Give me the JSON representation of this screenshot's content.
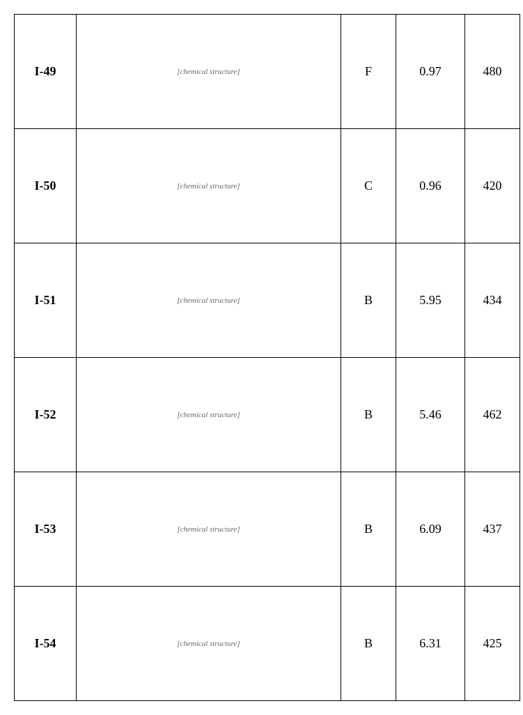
{
  "table": {
    "columns": {
      "c1_width": 80,
      "c2_width": 371,
      "c3_width": 70,
      "c4_width": 90,
      "c5_width": 70,
      "border_color": "#000000",
      "font_family": "Times New Roman",
      "cell_font_size": 18,
      "id_font_weight": "bold"
    },
    "rows": [
      {
        "id": "I-49",
        "structure_desc": "[chemical structure]",
        "c3": "F",
        "c4": "0.97",
        "c5": "480"
      },
      {
        "id": "I-50",
        "structure_desc": "[chemical structure]",
        "c3": "C",
        "c4": "0.96",
        "c5": "420"
      },
      {
        "id": "I-51",
        "structure_desc": "[chemical structure]",
        "c3": "B",
        "c4": "5.95",
        "c5": "434"
      },
      {
        "id": "I-52",
        "structure_desc": "[chemical structure]",
        "c3": "B",
        "c4": "5.46",
        "c5": "462"
      },
      {
        "id": "I-53",
        "structure_desc": "[chemical structure]",
        "c3": "B",
        "c4": "6.09",
        "c5": "437"
      },
      {
        "id": "I-54",
        "structure_desc": "[chemical structure]",
        "c3": "B",
        "c4": "6.31",
        "c5": "425"
      }
    ]
  }
}
